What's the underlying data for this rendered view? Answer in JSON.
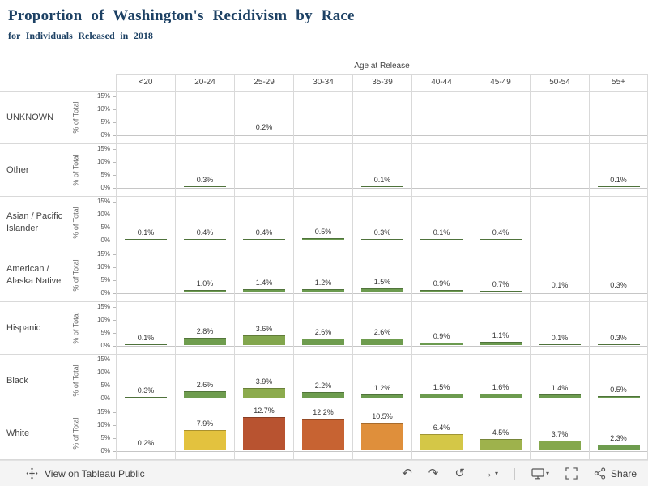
{
  "title": "Proportion of Washington's Recidivism by Race",
  "subtitle": "for Individuals Released in 2018",
  "chart_data": {
    "type": "bar",
    "layout": "small-multiples-grid",
    "title": "Proportion of Washington's Recidivism by Race",
    "subtitle": "for Individuals Released in 2018",
    "columns_label": "Age at Release",
    "ylabel": "% of Total",
    "ylim": [
      0,
      15
    ],
    "y_ticks_pct": [
      0,
      5,
      10,
      15
    ],
    "grid": "on",
    "categories": [
      "<20",
      "20-24",
      "25-29",
      "30-34",
      "35-39",
      "40-44",
      "45-49",
      "50-54",
      "55+"
    ],
    "series": [
      {
        "name": "UNKNOWN",
        "values": [
          null,
          null,
          0.2,
          null,
          null,
          null,
          null,
          null,
          null
        ]
      },
      {
        "name": "Other",
        "values": [
          null,
          0.3,
          null,
          null,
          0.1,
          null,
          null,
          null,
          0.1
        ]
      },
      {
        "name": "Asian / Pacific Islander",
        "values": [
          0.1,
          0.4,
          0.4,
          0.5,
          0.3,
          0.1,
          0.4,
          null,
          null
        ]
      },
      {
        "name": "American / Alaska Native",
        "values": [
          null,
          1.0,
          1.4,
          1.2,
          1.5,
          0.9,
          0.7,
          0.1,
          0.3
        ]
      },
      {
        "name": "Hispanic",
        "values": [
          0.1,
          2.8,
          3.6,
          2.6,
          2.6,
          0.9,
          1.1,
          0.1,
          0.3
        ]
      },
      {
        "name": "Black",
        "values": [
          0.3,
          2.6,
          3.9,
          2.2,
          1.2,
          1.5,
          1.6,
          1.4,
          0.5
        ]
      },
      {
        "name": "White",
        "values": [
          0.2,
          7.9,
          12.7,
          12.2,
          10.5,
          6.4,
          4.5,
          3.7,
          2.3
        ]
      }
    ],
    "value_label_suffix": "%",
    "color_scale": {
      "stops": [
        {
          "v": 0,
          "c": "#69994f"
        },
        {
          "v": 3.0,
          "c": "#6f9d4e"
        },
        {
          "v": 4.0,
          "c": "#8fac4d"
        },
        {
          "v": 5.5,
          "c": "#bcbe4a"
        },
        {
          "v": 6.5,
          "c": "#d7c847"
        },
        {
          "v": 8.0,
          "c": "#e4c23d"
        },
        {
          "v": 9.5,
          "c": "#e2a43e"
        },
        {
          "v": 10.5,
          "c": "#df8f3b"
        },
        {
          "v": 12.0,
          "c": "#cd6a33"
        },
        {
          "v": 12.7,
          "c": "#b85330"
        }
      ]
    }
  },
  "toolbar": {
    "view_on_tableau": "View on Tableau Public",
    "share": "Share",
    "icons": {
      "undo": "↶",
      "redo": "↷",
      "replay": "↺",
      "forward": "→",
      "caret": "▾"
    }
  },
  "colors": {
    "title_text": "#1d4164",
    "grid_line": "#d9d9d9",
    "axis_line": "#c6c6c6",
    "tick_text": "#555555",
    "header_text": "#454545",
    "bar_label_text": "#333333",
    "toolbar_bg": "#f4f4f4",
    "toolbar_text": "#3f3f3f"
  }
}
